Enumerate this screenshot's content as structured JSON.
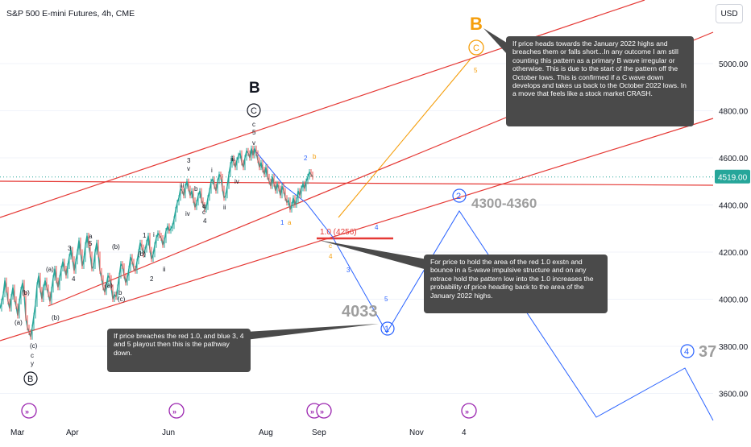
{
  "symbol_title": "S&P 500 E-mini Futures, 4h, CME",
  "currency": "USD",
  "chart_data": {
    "type": "candlestick",
    "title": "S&P 500 E-mini Futures, 4h, CME",
    "ylim": [
      3450,
      5250
    ],
    "y_ticks": [
      {
        "value": 5000,
        "label": "5000.00"
      },
      {
        "value": 4800,
        "label": "4800.00"
      },
      {
        "value": 4600,
        "label": "4600.00"
      },
      {
        "value": 4400,
        "label": "4400.00"
      },
      {
        "value": 4200,
        "label": "4200.00"
      },
      {
        "value": 4000,
        "label": "4000.00"
      },
      {
        "value": 3800,
        "label": "3800.00"
      },
      {
        "value": 3600,
        "label": "3600.00"
      }
    ],
    "x_ticks": [
      "Mar",
      "Apr",
      "Jun",
      "Aug",
      "Sep",
      "Nov",
      "4"
    ],
    "last_price": {
      "value": 4519,
      "label": "4519.00"
    },
    "price_path": [
      [
        0,
        3960
      ],
      [
        2,
        3990
      ],
      [
        4,
        4020
      ],
      [
        6,
        4080
      ],
      [
        8,
        4040
      ],
      [
        10,
        3990
      ],
      [
        12,
        3960
      ],
      [
        14,
        4010
      ],
      [
        16,
        4050
      ],
      [
        18,
        4000
      ],
      [
        20,
        3970
      ],
      [
        22,
        3930
      ],
      [
        24,
        3990
      ],
      [
        26,
        4040
      ],
      [
        28,
        4070
      ],
      [
        30,
        4020
      ],
      [
        32,
        3920
      ],
      [
        34,
        3880
      ],
      [
        36,
        3860
      ],
      [
        38,
        3840
      ],
      [
        40,
        3880
      ],
      [
        42,
        3930
      ],
      [
        44,
        3980
      ],
      [
        46,
        4060
      ],
      [
        48,
        4100
      ],
      [
        50,
        4040
      ],
      [
        52,
        4000
      ],
      [
        54,
        4050
      ],
      [
        56,
        4080
      ],
      [
        58,
        4050
      ],
      [
        60,
        4020
      ],
      [
        62,
        3990
      ],
      [
        64,
        4040
      ],
      [
        66,
        4090
      ],
      [
        68,
        4130
      ],
      [
        70,
        4080
      ],
      [
        72,
        4050
      ],
      [
        74,
        4090
      ],
      [
        76,
        4130
      ],
      [
        78,
        4160
      ],
      [
        80,
        4130
      ],
      [
        82,
        4100
      ],
      [
        84,
        4140
      ],
      [
        86,
        4180
      ],
      [
        88,
        4210
      ],
      [
        90,
        4170
      ],
      [
        92,
        4120
      ],
      [
        94,
        4160
      ],
      [
        96,
        4200
      ],
      [
        98,
        4250
      ],
      [
        100,
        4200
      ],
      [
        102,
        4140
      ],
      [
        104,
        4170
      ],
      [
        106,
        4230
      ],
      [
        108,
        4270
      ],
      [
        110,
        4230
      ],
      [
        112,
        4190
      ],
      [
        114,
        4130
      ],
      [
        116,
        4140
      ],
      [
        118,
        4200
      ],
      [
        120,
        4240
      ],
      [
        122,
        4190
      ],
      [
        124,
        4120
      ],
      [
        126,
        4090
      ],
      [
        128,
        4050
      ],
      [
        130,
        4030
      ],
      [
        132,
        4060
      ],
      [
        134,
        4100
      ],
      [
        136,
        4090
      ],
      [
        138,
        4050
      ],
      [
        140,
        4000
      ],
      [
        142,
        4020
      ],
      [
        144,
        4010
      ],
      [
        146,
        4050
      ],
      [
        148,
        4100
      ],
      [
        150,
        4150
      ],
      [
        152,
        4140
      ],
      [
        154,
        4100
      ],
      [
        156,
        4070
      ],
      [
        158,
        4090
      ],
      [
        160,
        4130
      ],
      [
        162,
        4180
      ],
      [
        164,
        4160
      ],
      [
        166,
        4130
      ],
      [
        168,
        4120
      ],
      [
        170,
        4160
      ],
      [
        172,
        4200
      ],
      [
        174,
        4240
      ],
      [
        176,
        4220
      ],
      [
        178,
        4190
      ],
      [
        180,
        4210
      ],
      [
        182,
        4240
      ],
      [
        184,
        4270
      ],
      [
        186,
        4210
      ],
      [
        188,
        4170
      ],
      [
        190,
        4190
      ],
      [
        192,
        4230
      ],
      [
        194,
        4260
      ],
      [
        196,
        4280
      ],
      [
        198,
        4270
      ],
      [
        200,
        4260
      ],
      [
        202,
        4230
      ],
      [
        204,
        4250
      ],
      [
        206,
        4290
      ],
      [
        208,
        4310
      ],
      [
        210,
        4290
      ],
      [
        212,
        4300
      ],
      [
        214,
        4310
      ],
      [
        216,
        4340
      ],
      [
        218,
        4380
      ],
      [
        220,
        4410
      ],
      [
        222,
        4430
      ],
      [
        224,
        4470
      ],
      [
        226,
        4460
      ],
      [
        228,
        4440
      ],
      [
        230,
        4480
      ],
      [
        232,
        4500
      ],
      [
        234,
        4470
      ],
      [
        236,
        4440
      ],
      [
        238,
        4460
      ],
      [
        240,
        4420
      ],
      [
        242,
        4390
      ],
      [
        244,
        4410
      ],
      [
        246,
        4440
      ],
      [
        248,
        4460
      ],
      [
        250,
        4420
      ],
      [
        252,
        4400
      ],
      [
        254,
        4380
      ],
      [
        256,
        4390
      ],
      [
        258,
        4430
      ],
      [
        260,
        4460
      ],
      [
        262,
        4500
      ],
      [
        264,
        4510
      ],
      [
        266,
        4480
      ],
      [
        268,
        4460
      ],
      [
        270,
        4500
      ],
      [
        272,
        4530
      ],
      [
        274,
        4520
      ],
      [
        276,
        4470
      ],
      [
        278,
        4430
      ],
      [
        280,
        4440
      ],
      [
        282,
        4480
      ],
      [
        284,
        4530
      ],
      [
        286,
        4570
      ],
      [
        288,
        4600
      ],
      [
        290,
        4580
      ],
      [
        292,
        4560
      ],
      [
        294,
        4590
      ],
      [
        296,
        4610
      ],
      [
        298,
        4620
      ],
      [
        300,
        4580
      ],
      [
        302,
        4560
      ],
      [
        304,
        4600
      ],
      [
        306,
        4630
      ],
      [
        308,
        4620
      ],
      [
        310,
        4600
      ],
      [
        312,
        4640
      ],
      [
        314,
        4610
      ],
      [
        316,
        4640
      ],
      [
        318,
        4620
      ],
      [
        320,
        4590
      ],
      [
        322,
        4560
      ],
      [
        324,
        4580
      ],
      [
        326,
        4550
      ],
      [
        328,
        4530
      ],
      [
        330,
        4560
      ],
      [
        332,
        4520
      ],
      [
        334,
        4500
      ],
      [
        336,
        4480
      ],
      [
        338,
        4520
      ],
      [
        340,
        4490
      ],
      [
        342,
        4460
      ],
      [
        344,
        4490
      ],
      [
        346,
        4470
      ],
      [
        348,
        4440
      ],
      [
        350,
        4480
      ],
      [
        352,
        4460
      ],
      [
        354,
        4430
      ],
      [
        356,
        4410
      ],
      [
        358,
        4420
      ],
      [
        360,
        4380
      ],
      [
        362,
        4400
      ],
      [
        364,
        4430
      ],
      [
        366,
        4400
      ],
      [
        368,
        4420
      ],
      [
        370,
        4460
      ],
      [
        372,
        4440
      ],
      [
        374,
        4470
      ],
      [
        376,
        4490
      ],
      [
        378,
        4470
      ],
      [
        380,
        4500
      ],
      [
        382,
        4520
      ],
      [
        384,
        4540
      ],
      [
        386,
        4530
      ],
      [
        388,
        4519
      ]
    ],
    "horizontal_line": {
      "value": 4490,
      "color": "#e53935"
    },
    "channel_color": "#e53935",
    "wave_labels": [
      {
        "text": "(a)",
        "color": "#131722"
      },
      {
        "text": "(b)",
        "color": "#131722"
      },
      {
        "text": "(a)",
        "color": "#131722"
      },
      {
        "text": "(b)",
        "color": "#131722"
      },
      {
        "text": "(c)",
        "color": "#131722"
      },
      {
        "text": "c",
        "color": "#131722"
      },
      {
        "text": "y",
        "color": "#131722"
      },
      {
        "text": "(a)",
        "color": "#131722"
      },
      {
        "text": "(b)",
        "color": "#131722"
      },
      {
        "text": "(c)",
        "color": "#131722"
      },
      {
        "text": "b",
        "color": "#131722"
      },
      {
        "text": "3",
        "color": "#131722"
      },
      {
        "text": "4",
        "color": "#131722"
      },
      {
        "text": "a",
        "color": "#131722"
      },
      {
        "text": "5",
        "color": "#131722"
      },
      {
        "text": "(b)",
        "color": "#131722"
      },
      {
        "text": "1",
        "color": "#131722"
      },
      {
        "text": "2",
        "color": "#131722"
      },
      {
        "text": "ii",
        "color": "#131722"
      },
      {
        "text": "i",
        "color": "#131722"
      },
      {
        "text": "3",
        "color": "#131722"
      },
      {
        "text": "v",
        "color": "#131722"
      },
      {
        "text": "iii",
        "color": "#131722"
      },
      {
        "text": "iv",
        "color": "#131722"
      },
      {
        "text": "b",
        "color": "#131722"
      },
      {
        "text": "a",
        "color": "#131722"
      },
      {
        "text": "c",
        "color": "#131722"
      },
      {
        "text": "4",
        "color": "#131722"
      },
      {
        "text": "i",
        "color": "#131722"
      },
      {
        "text": "ii",
        "color": "#131722"
      },
      {
        "text": "iii",
        "color": "#131722"
      },
      {
        "text": "iv",
        "color": "#131722"
      },
      {
        "text": "c",
        "color": "#131722"
      },
      {
        "text": "5",
        "color": "#131722"
      },
      {
        "text": "v",
        "color": "#131722"
      },
      {
        "text": "1",
        "color": "#2962ff"
      },
      {
        "text": "a",
        "color": "#f59e0b"
      },
      {
        "text": "2",
        "color": "#2962ff"
      },
      {
        "text": "b",
        "color": "#f59e0b"
      },
      {
        "text": "c",
        "color": "#f59e0b"
      },
      {
        "text": "4",
        "color": "#f59e0b"
      },
      {
        "text": "3",
        "color": "#2962ff"
      },
      {
        "text": "4",
        "color": "#2962ff"
      },
      {
        "text": "5",
        "color": "#2962ff"
      },
      {
        "text": "5",
        "color": "#f59e0b"
      }
    ],
    "big_labels": {
      "B_black": "B",
      "C_black": "C",
      "B_circle_black": "B",
      "B_orange": "B",
      "C_orange": "C",
      "fib_label": "1.0  (4256)",
      "circle_1": "1",
      "circle_2": "2",
      "circle_4": "4",
      "target_4033": "4033",
      "target_4300_4360": "4300-4360",
      "target_37": "37"
    },
    "callouts": {
      "top_right": "If price heads towards the January 2022 highs and breaches them or falls short...In any outcome I am still counting this pattern as a primary B wave irregular or otherwise.  This is due to the start of the pattern off the October lows.  This is confirmed if a C wave down develops and takes us back to the October 2022 lows. In a move that feels like a stock market CRASH.",
      "middle_right": "For price to hold the area of the red 1.0 exstn and bounce in a 5-wave impulsive structure and on any retrace hold the pattern low into the 1.0 increases the probability of price heading back to the area of the January 2022 highs.",
      "bottom_left": "If price breaches the red 1.0, and blue 3, 4 and 5 playout then this is the pathway down."
    }
  }
}
